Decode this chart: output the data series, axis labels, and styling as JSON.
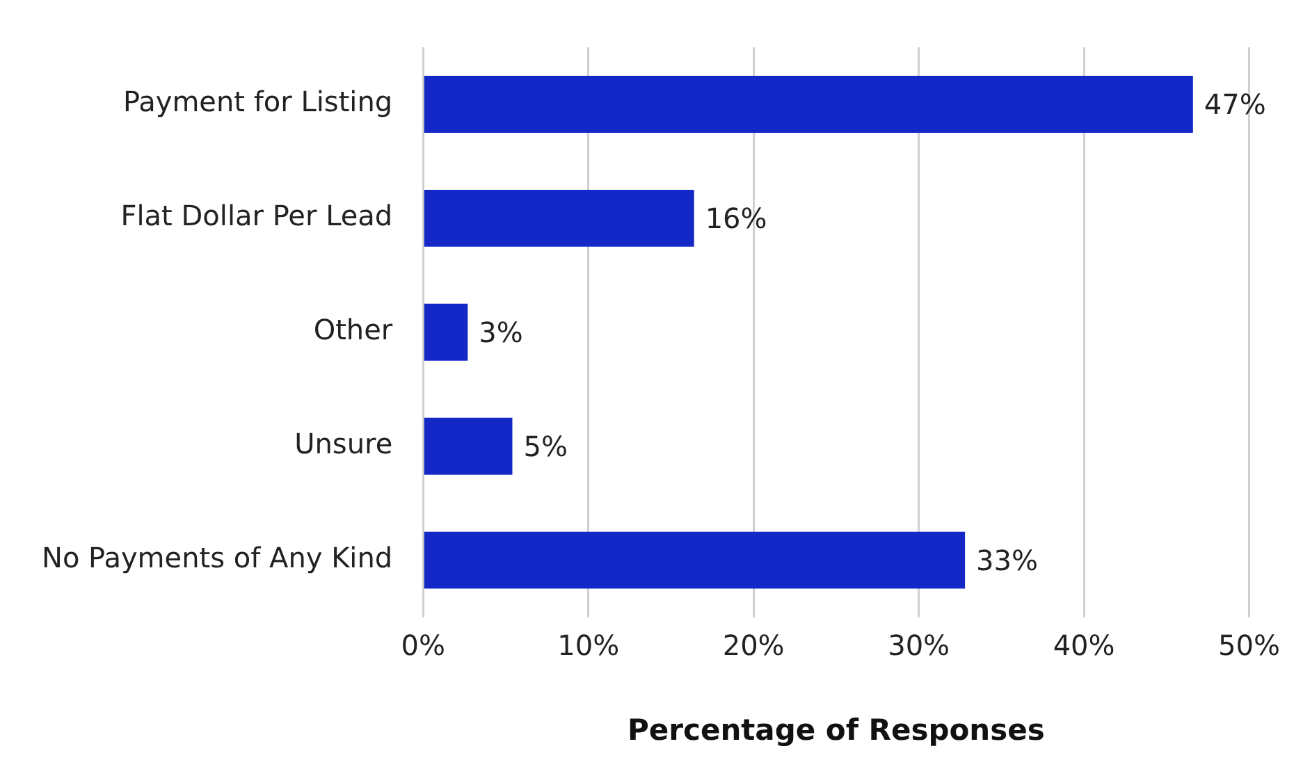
{
  "chart_data": {
    "type": "bar",
    "orientation": "horizontal",
    "xlabel": "Percentage of Responses",
    "categories": [
      "Payment for Listing",
      "Flat Dollar Per Lead",
      "Other",
      "Unsure",
      "No Payments of Any Kind"
    ],
    "values": [
      46.6,
      16.4,
      2.7,
      5.4,
      32.8
    ],
    "value_labels": [
      "47%",
      "16%",
      "3%",
      "5%",
      "33%"
    ],
    "color": "#1428c8",
    "xlim": [
      0,
      50
    ],
    "xticks": [
      {
        "value": 0,
        "label": "0%"
      },
      {
        "value": 10,
        "label": "10%"
      },
      {
        "value": 20,
        "label": "20%"
      },
      {
        "value": 30,
        "label": "30%"
      },
      {
        "value": 40,
        "label": "40%"
      },
      {
        "value": 50,
        "label": "50%"
      }
    ],
    "grid": "x",
    "legend": false
  }
}
